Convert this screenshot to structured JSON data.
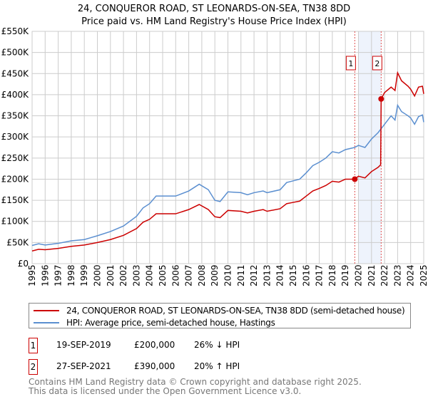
{
  "chart_data": {
    "type": "line",
    "title": "24, CONQUEROR ROAD, ST LEONARDS-ON-SEA, TN38 8DD",
    "subtitle": "Price paid vs. HM Land Registry's House Price Index (HPI)",
    "ylim": [
      0,
      550000
    ],
    "xlim": [
      1995,
      2025
    ],
    "yticks": [
      {
        "v": 0,
        "l": "£0"
      },
      {
        "v": 50000,
        "l": "£50K"
      },
      {
        "v": 100000,
        "l": "£100K"
      },
      {
        "v": 150000,
        "l": "£150K"
      },
      {
        "v": 200000,
        "l": "£200K"
      },
      {
        "v": 250000,
        "l": "£250K"
      },
      {
        "v": 300000,
        "l": "£300K"
      },
      {
        "v": 350000,
        "l": "£350K"
      },
      {
        "v": 400000,
        "l": "£400K"
      },
      {
        "v": 450000,
        "l": "£450K"
      },
      {
        "v": 500000,
        "l": "£500K"
      },
      {
        "v": 550000,
        "l": "£550K"
      }
    ],
    "xticks": [
      "1995",
      "1996",
      "1997",
      "1998",
      "1999",
      "2000",
      "2001",
      "2002",
      "2003",
      "2004",
      "2005",
      "2006",
      "2007",
      "2008",
      "2009",
      "2010",
      "2011",
      "2012",
      "2013",
      "2014",
      "2015",
      "2016",
      "2017",
      "2018",
      "2019",
      "2020",
      "2021",
      "2022",
      "2023",
      "2024",
      "2025"
    ],
    "grid": true,
    "shaded_range": [
      2020.0,
      2021.74
    ],
    "series": [
      {
        "name": "24, CONQUEROR ROAD, ST LEONARDS-ON-SEA, TN38 8DD (semi-detached house)",
        "color": "#cc0000",
        "points": [
          [
            1995,
            30000
          ],
          [
            1995.5,
            34000
          ],
          [
            1996,
            33000
          ],
          [
            1997,
            36000
          ],
          [
            1998,
            41000
          ],
          [
            1999,
            44000
          ],
          [
            2000,
            50000
          ],
          [
            2001,
            57000
          ],
          [
            2002,
            67000
          ],
          [
            2003,
            83000
          ],
          [
            2003.5,
            98000
          ],
          [
            2004,
            105000
          ],
          [
            2004.5,
            118000
          ],
          [
            2005,
            118000
          ],
          [
            2006,
            118000
          ],
          [
            2007,
            128000
          ],
          [
            2007.8,
            140000
          ],
          [
            2008.5,
            128000
          ],
          [
            2009,
            111000
          ],
          [
            2009.4,
            109000
          ],
          [
            2010,
            126000
          ],
          [
            2011,
            124000
          ],
          [
            2011.5,
            120000
          ],
          [
            2012,
            124000
          ],
          [
            2012.7,
            128000
          ],
          [
            2013,
            124000
          ],
          [
            2014,
            130000
          ],
          [
            2014.5,
            142000
          ],
          [
            2015,
            145000
          ],
          [
            2015.5,
            148000
          ],
          [
            2016,
            160000
          ],
          [
            2016.5,
            172000
          ],
          [
            2017,
            178000
          ],
          [
            2017.5,
            185000
          ],
          [
            2018,
            195000
          ],
          [
            2018.5,
            193000
          ],
          [
            2019,
            200000
          ],
          [
            2019.72,
            200000
          ],
          [
            2020,
            207000
          ],
          [
            2020.5,
            203000
          ],
          [
            2021,
            218000
          ],
          [
            2021.5,
            228000
          ],
          [
            2021.7,
            234000
          ],
          [
            2021.74,
            390000
          ],
          [
            2022,
            405000
          ],
          [
            2022.5,
            418000
          ],
          [
            2022.8,
            410000
          ],
          [
            2023,
            452000
          ],
          [
            2023.3,
            433000
          ],
          [
            2023.8,
            420000
          ],
          [
            2024,
            413000
          ],
          [
            2024.3,
            397000
          ],
          [
            2024.6,
            418000
          ],
          [
            2024.9,
            420000
          ],
          [
            2025,
            402000
          ]
        ]
      },
      {
        "name": "HPI: Average price, semi-detached house, Hastings",
        "color": "#5b8fd0",
        "points": [
          [
            1995,
            43000
          ],
          [
            1995.5,
            47000
          ],
          [
            1996,
            44000
          ],
          [
            1997,
            48000
          ],
          [
            1998,
            54000
          ],
          [
            1999,
            57000
          ],
          [
            2000,
            66000
          ],
          [
            2001,
            76000
          ],
          [
            2002,
            89000
          ],
          [
            2003,
            112000
          ],
          [
            2003.5,
            132000
          ],
          [
            2004,
            142000
          ],
          [
            2004.5,
            160000
          ],
          [
            2005,
            160000
          ],
          [
            2006,
            160000
          ],
          [
            2007,
            172000
          ],
          [
            2007.8,
            188000
          ],
          [
            2008.5,
            175000
          ],
          [
            2009,
            150000
          ],
          [
            2009.4,
            147000
          ],
          [
            2010,
            170000
          ],
          [
            2011,
            168000
          ],
          [
            2011.5,
            163000
          ],
          [
            2012,
            168000
          ],
          [
            2012.7,
            172000
          ],
          [
            2013,
            168000
          ],
          [
            2014,
            175000
          ],
          [
            2014.5,
            192000
          ],
          [
            2015,
            196000
          ],
          [
            2015.5,
            200000
          ],
          [
            2016,
            215000
          ],
          [
            2016.5,
            232000
          ],
          [
            2017,
            240000
          ],
          [
            2017.5,
            250000
          ],
          [
            2018,
            265000
          ],
          [
            2018.5,
            262000
          ],
          [
            2019,
            270000
          ],
          [
            2019.7,
            275000
          ],
          [
            2020,
            280000
          ],
          [
            2020.5,
            275000
          ],
          [
            2021,
            295000
          ],
          [
            2021.5,
            310000
          ],
          [
            2022,
            330000
          ],
          [
            2022.5,
            350000
          ],
          [
            2022.8,
            340000
          ],
          [
            2023,
            375000
          ],
          [
            2023.3,
            360000
          ],
          [
            2023.8,
            350000
          ],
          [
            2024,
            345000
          ],
          [
            2024.3,
            330000
          ],
          [
            2024.6,
            348000
          ],
          [
            2024.9,
            352000
          ],
          [
            2025,
            335000
          ]
        ]
      }
    ],
    "sales": [
      {
        "id": "1",
        "x": 2019.72,
        "y": 200000,
        "date": "19-SEP-2019",
        "price": "£200,000",
        "hpi": "26% ↓ HPI"
      },
      {
        "id": "2",
        "x": 2021.74,
        "y": 390000,
        "date": "27-SEP-2021",
        "price": "£390,000",
        "hpi": "20% ↑ HPI"
      }
    ]
  },
  "footer": {
    "line1": "Contains HM Land Registry data © Crown copyright and database right 2025.",
    "line2": "This data is licensed under the Open Government Licence v3.0."
  }
}
